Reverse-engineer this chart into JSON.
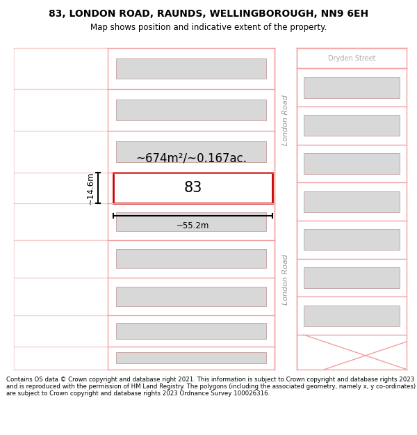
{
  "title": "83, LONDON ROAD, RAUNDS, WELLINGBOROUGH, NN9 6EH",
  "subtitle": "Map shows position and indicative extent of the property.",
  "footer": "Contains OS data © Crown copyright and database right 2021. This information is subject to Crown copyright and database rights 2023 and is reproduced with the permission of HM Land Registry. The polygons (including the associated geometry, namely x, y co-ordinates) are subject to Crown copyright and database rights 2023 Ordnance Survey 100026316.",
  "background_color": "#ffffff",
  "road_color": "#f0a0a0",
  "building_fill": "#d8d8d8",
  "building_edge": "#c8a8a8",
  "highlight_color": "#cc0000",
  "highlight_fill": "#ffffff",
  "area_label": "~674m²/~0.167ac.",
  "number_label": "83",
  "width_label": "~55.2m",
  "height_label": "~14.6m",
  "road_label_top": "London Road",
  "road_label_bot": "London Road",
  "street_label": "Dryden Street",
  "title_fontsize": 10,
  "subtitle_fontsize": 8.5,
  "footer_fontsize": 6.2,
  "area_fontsize": 12,
  "number_fontsize": 15,
  "dim_fontsize": 8.5,
  "road_label_fontsize": 8,
  "street_label_fontsize": 7
}
